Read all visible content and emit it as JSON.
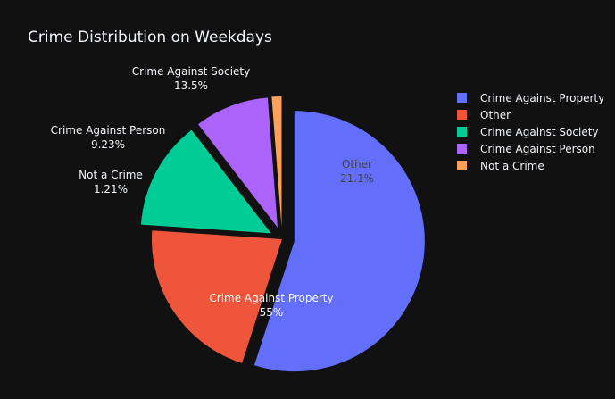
{
  "chart_data": {
    "type": "pie",
    "title": "Crime Distribution on Weekdays",
    "background_color": "#111111",
    "text_color": "#f2f5fa",
    "legend_position": "top-right",
    "direction": "clockwise",
    "start_angle_deg": 90,
    "slices": [
      {
        "label": "Crime Against Property",
        "value": 55.0,
        "percent_text": "55%",
        "color": "#636efa",
        "pulled": true,
        "label_position": "inside"
      },
      {
        "label": "Other",
        "value": 21.1,
        "percent_text": "21.1%",
        "color": "#ef553b",
        "pulled": false,
        "label_position": "inside"
      },
      {
        "label": "Crime Against Society",
        "value": 13.5,
        "percent_text": "13.5%",
        "color": "#00cc96",
        "pulled": true,
        "label_position": "outside"
      },
      {
        "label": "Crime Against Person",
        "value": 9.23,
        "percent_text": "9.23%",
        "color": "#ab63fa",
        "pulled": true,
        "label_position": "outside"
      },
      {
        "label": "Not a Crime",
        "value": 1.21,
        "percent_text": "1.21%",
        "color": "#ffa15a",
        "pulled": true,
        "label_position": "outside"
      }
    ]
  }
}
